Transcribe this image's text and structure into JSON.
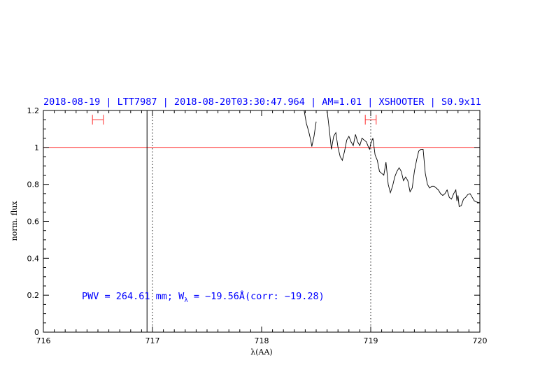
{
  "chart_data": {
    "type": "line",
    "title": "2018-08-19 | LTT7987 | 2018-08-20T03:30:47.964 | AM=1.01 | XSHOOTER | S0.9x11",
    "xlabel": "λ(AA)",
    "ylabel": "norm. flux",
    "xlim": [
      716,
      720
    ],
    "ylim": [
      0,
      1.2
    ],
    "x_ticks": [
      "716",
      "717",
      "718",
      "719",
      "720"
    ],
    "y_ticks": [
      "0",
      "0.2",
      "0.4",
      "0.6",
      "0.8",
      "1",
      "1.2"
    ],
    "annotation": "PWV = 264.61 mm; W",
    "annotation_sub": "λ",
    "annotation_tail": " = −19.56Å(corr: −19.28)",
    "reference_line": {
      "y": 1.0,
      "color": "#ff0000"
    },
    "dotted_lines_x": [
      717.0,
      719.0
    ],
    "spike": {
      "x": 716.95,
      "y_from": 0.0,
      "y_to": 1.2
    },
    "error_bars": [
      {
        "x": [
          716.45,
          716.55
        ],
        "y": 1.15
      },
      {
        "x": [
          718.95,
          719.05
        ],
        "y": 1.15
      }
    ],
    "series": [
      {
        "color": "#000000",
        "points": [
          [
            718.39,
            1.2
          ],
          [
            718.41,
            1.13
          ],
          [
            718.43,
            1.09
          ],
          [
            718.45,
            1.04
          ],
          [
            718.46,
            1.005
          ],
          [
            718.48,
            1.06
          ],
          [
            718.5,
            1.14
          ],
          [
            718.52,
            1.2
          ],
          [
            718.6,
            1.2
          ],
          [
            718.62,
            1.1
          ],
          [
            718.64,
            0.99
          ],
          [
            718.66,
            1.06
          ],
          [
            718.68,
            1.08
          ],
          [
            718.7,
            1.0
          ],
          [
            718.72,
            0.95
          ],
          [
            718.74,
            0.93
          ],
          [
            718.76,
            0.98
          ],
          [
            718.78,
            1.04
          ],
          [
            718.8,
            1.06
          ],
          [
            718.82,
            1.03
          ],
          [
            718.84,
            1.01
          ],
          [
            718.86,
            1.07
          ],
          [
            718.88,
            1.03
          ],
          [
            718.9,
            1.01
          ],
          [
            718.92,
            1.05
          ],
          [
            718.94,
            1.04
          ],
          [
            718.96,
            1.03
          ],
          [
            718.98,
            1.0
          ],
          [
            718.99,
            0.99
          ],
          [
            719.0,
            1.02
          ],
          [
            719.02,
            1.05
          ],
          [
            719.04,
            0.96
          ],
          [
            719.06,
            0.93
          ],
          [
            719.08,
            0.87
          ],
          [
            719.1,
            0.86
          ],
          [
            719.12,
            0.85
          ],
          [
            719.14,
            0.92
          ],
          [
            719.16,
            0.8
          ],
          [
            719.18,
            0.755
          ],
          [
            719.2,
            0.79
          ],
          [
            719.22,
            0.84
          ],
          [
            719.24,
            0.87
          ],
          [
            719.26,
            0.89
          ],
          [
            719.28,
            0.87
          ],
          [
            719.3,
            0.82
          ],
          [
            719.32,
            0.84
          ],
          [
            719.34,
            0.82
          ],
          [
            719.36,
            0.76
          ],
          [
            719.38,
            0.78
          ],
          [
            719.4,
            0.87
          ],
          [
            719.42,
            0.93
          ],
          [
            719.44,
            0.98
          ],
          [
            719.46,
            0.99
          ],
          [
            719.48,
            0.99
          ],
          [
            719.5,
            0.86
          ],
          [
            719.52,
            0.8
          ],
          [
            719.54,
            0.78
          ],
          [
            719.56,
            0.79
          ],
          [
            719.58,
            0.79
          ],
          [
            719.6,
            0.78
          ],
          [
            719.62,
            0.77
          ],
          [
            719.64,
            0.75
          ],
          [
            719.66,
            0.74
          ],
          [
            719.68,
            0.75
          ],
          [
            719.7,
            0.77
          ],
          [
            719.72,
            0.73
          ],
          [
            719.74,
            0.72
          ],
          [
            719.76,
            0.75
          ],
          [
            719.78,
            0.77
          ],
          [
            719.79,
            0.71
          ],
          [
            719.8,
            0.74
          ],
          [
            719.81,
            0.68
          ],
          [
            719.83,
            0.685
          ],
          [
            719.85,
            0.72
          ],
          [
            719.87,
            0.73
          ],
          [
            719.89,
            0.745
          ],
          [
            719.91,
            0.75
          ],
          [
            719.93,
            0.73
          ],
          [
            719.95,
            0.71
          ],
          [
            719.97,
            0.705
          ],
          [
            720.0,
            0.7
          ]
        ]
      }
    ]
  }
}
